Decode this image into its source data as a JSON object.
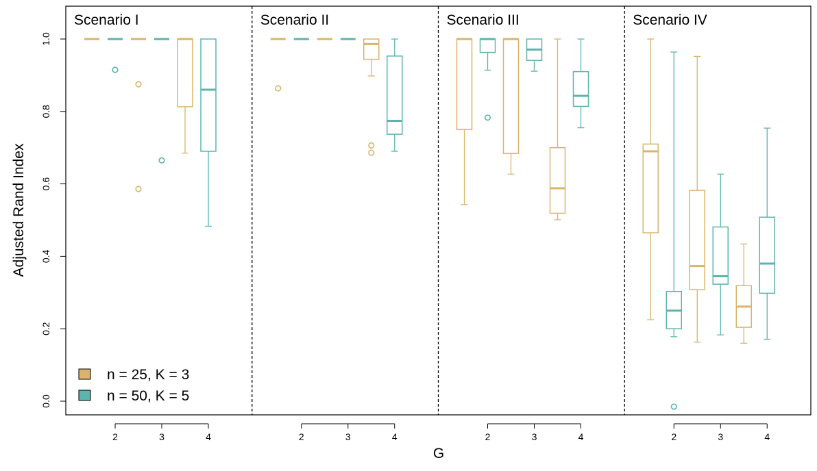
{
  "chart_data": {
    "type": "boxplot",
    "xlabel": "G",
    "ylabel": "Adjusted Rand Index",
    "ylim": [
      -0.05,
      1.06
    ],
    "yticks": [
      "0.0",
      "0.2",
      "0.4",
      "0.6",
      "0.8",
      "1.0"
    ],
    "grid": false,
    "legend_position": "bottom-left",
    "series": [
      {
        "name": "n = 25, K = 3",
        "color": "#D9B46A"
      },
      {
        "name": "n = 50, K = 5",
        "color": "#5BB5AC"
      }
    ],
    "panels": [
      {
        "title": "Scenario I",
        "groups": [
          {
            "g": "2",
            "n25": {
              "min": 1.0,
              "q1": 1.0,
              "median": 1.0,
              "q3": 1.0,
              "max": 1.0,
              "outliers": []
            },
            "n50": {
              "min": 1.0,
              "q1": 1.0,
              "median": 1.0,
              "q3": 1.0,
              "max": 1.0,
              "outliers": [
                0.915
              ]
            }
          },
          {
            "g": "3",
            "n25": {
              "min": 1.0,
              "q1": 1.0,
              "median": 1.0,
              "q3": 1.0,
              "max": 1.0,
              "outliers": [
                0.875,
                0.586
              ]
            },
            "n50": {
              "min": 1.0,
              "q1": 1.0,
              "median": 1.0,
              "q3": 1.0,
              "max": 1.0,
              "outliers": [
                0.665
              ]
            }
          },
          {
            "g": "4",
            "n25": {
              "min": 0.685,
              "q1": 0.813,
              "median": 1.0,
              "q3": 1.0,
              "max": 1.0,
              "outliers": []
            },
            "n50": {
              "min": 0.483,
              "q1": 0.69,
              "median": 0.86,
              "q3": 1.0,
              "max": 1.0,
              "outliers": []
            }
          }
        ]
      },
      {
        "title": "Scenario II",
        "groups": [
          {
            "g": "2",
            "n25": {
              "min": 1.0,
              "q1": 1.0,
              "median": 1.0,
              "q3": 1.0,
              "max": 1.0,
              "outliers": [
                0.864
              ]
            },
            "n50": {
              "min": 1.0,
              "q1": 1.0,
              "median": 1.0,
              "q3": 1.0,
              "max": 1.0,
              "outliers": []
            }
          },
          {
            "g": "3",
            "n25": {
              "min": 1.0,
              "q1": 1.0,
              "median": 1.0,
              "q3": 1.0,
              "max": 1.0,
              "outliers": []
            },
            "n50": {
              "min": 1.0,
              "q1": 1.0,
              "median": 1.0,
              "q3": 1.0,
              "max": 1.0,
              "outliers": []
            }
          },
          {
            "g": "4",
            "n25": {
              "min": 0.898,
              "q1": 0.944,
              "median": 0.986,
              "q3": 1.0,
              "max": 1.0,
              "outliers": [
                0.706,
                0.686
              ]
            },
            "n50": {
              "min": 0.69,
              "q1": 0.737,
              "median": 0.774,
              "q3": 0.953,
              "max": 1.0,
              "outliers": []
            }
          }
        ]
      },
      {
        "title": "Scenario III",
        "groups": [
          {
            "g": "2",
            "n25": {
              "min": 0.543,
              "q1": 0.75,
              "median": 1.0,
              "q3": 1.0,
              "max": 1.0,
              "outliers": []
            },
            "n50": {
              "min": 0.914,
              "q1": 0.963,
              "median": 1.0,
              "q3": 1.0,
              "max": 1.0,
              "outliers": [
                0.783
              ]
            }
          },
          {
            "g": "3",
            "n25": {
              "min": 0.627,
              "q1": 0.684,
              "median": 1.0,
              "q3": 1.0,
              "max": 1.0,
              "outliers": []
            },
            "n50": {
              "min": 0.911,
              "q1": 0.941,
              "median": 0.971,
              "q3": 1.0,
              "max": 1.0,
              "outliers": []
            }
          },
          {
            "g": "4",
            "n25": {
              "min": 0.501,
              "q1": 0.519,
              "median": 0.588,
              "q3": 0.7,
              "max": 1.0,
              "outliers": []
            },
            "n50": {
              "min": 0.755,
              "q1": 0.814,
              "median": 0.843,
              "q3": 0.91,
              "max": 1.0,
              "outliers": []
            }
          }
        ]
      },
      {
        "title": "Scenario IV",
        "groups": [
          {
            "g": "2",
            "n25": {
              "min": 0.225,
              "q1": 0.465,
              "median": 0.69,
              "q3": 0.71,
              "max": 1.0,
              "outliers": []
            },
            "n50": {
              "min": 0.178,
              "q1": 0.2,
              "median": 0.25,
              "q3": 0.303,
              "max": 0.964,
              "outliers": [
                -0.015
              ]
            }
          },
          {
            "g": "3",
            "n25": {
              "min": 0.163,
              "q1": 0.308,
              "median": 0.373,
              "q3": 0.582,
              "max": 0.952,
              "outliers": []
            },
            "n50": {
              "min": 0.183,
              "q1": 0.323,
              "median": 0.345,
              "q3": 0.481,
              "max": 0.627,
              "outliers": []
            }
          },
          {
            "g": "4",
            "n25": {
              "min": 0.16,
              "q1": 0.204,
              "median": 0.261,
              "q3": 0.319,
              "max": 0.434,
              "outliers": []
            },
            "n50": {
              "min": 0.171,
              "q1": 0.298,
              "median": 0.38,
              "q3": 0.508,
              "max": 0.754,
              "outliers": []
            }
          }
        ]
      }
    ]
  }
}
